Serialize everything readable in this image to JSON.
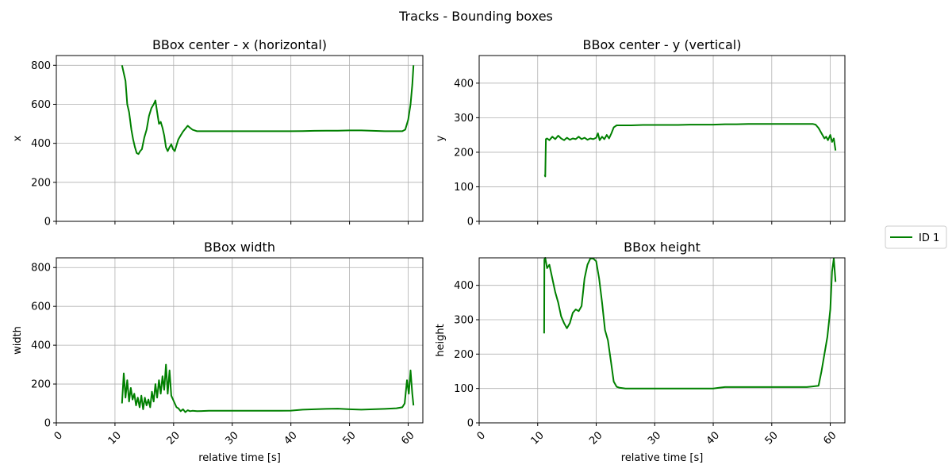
{
  "figure": {
    "title": "Tracks - Bounding boxes"
  },
  "legend": {
    "placement": "right",
    "entries": [
      {
        "label": "ID 1",
        "color": "#008000"
      }
    ]
  },
  "chart_data": [
    {
      "type": "line",
      "title": "BBox center - x (horizontal)",
      "xlabel": "",
      "ylabel": "x",
      "xlim": [
        0,
        62.5
      ],
      "ylim": [
        0,
        850
      ],
      "xticks": [
        0,
        10,
        20,
        30,
        40,
        50,
        60
      ],
      "yticks": [
        0,
        200,
        400,
        600,
        800
      ],
      "show_xticklabels": false,
      "grid": true,
      "series": [
        {
          "name": "ID 1",
          "color": "#008000",
          "x": [
            11.2,
            11.5,
            11.8,
            12.1,
            12.4,
            12.8,
            13.1,
            13.4,
            13.7,
            14.0,
            14.3,
            14.6,
            15.0,
            15.4,
            15.8,
            16.2,
            16.6,
            16.9,
            17.2,
            17.5,
            17.8,
            18.1,
            18.4,
            18.7,
            19.0,
            19.3,
            19.6,
            19.9,
            20.2,
            20.5,
            20.8,
            21.2,
            21.6,
            22.0,
            22.4,
            22.8,
            23.2,
            24,
            26,
            28,
            30,
            32,
            34,
            36,
            38,
            40,
            42,
            44,
            46,
            48,
            50,
            52,
            54,
            56,
            58,
            59.0,
            59.5,
            60.0,
            60.4,
            60.7,
            60.9
          ],
          "y": [
            800,
            760,
            720,
            600,
            560,
            470,
            420,
            380,
            350,
            345,
            360,
            370,
            430,
            470,
            540,
            580,
            600,
            620,
            560,
            500,
            510,
            480,
            440,
            380,
            360,
            380,
            395,
            370,
            360,
            390,
            420,
            440,
            460,
            475,
            490,
            480,
            470,
            462,
            462,
            462,
            462,
            462,
            462,
            462,
            462,
            462,
            463,
            464,
            465,
            465,
            466,
            466,
            464,
            462,
            462,
            462,
            470,
            520,
            600,
            700,
            800
          ]
        }
      ]
    },
    {
      "type": "line",
      "title": "BBox center - y (vertical)",
      "xlabel": "",
      "ylabel": "y",
      "xlim": [
        0,
        62.5
      ],
      "ylim": [
        0,
        480
      ],
      "xticks": [
        0,
        10,
        20,
        30,
        40,
        50,
        60
      ],
      "yticks": [
        0,
        100,
        200,
        300,
        400
      ],
      "show_xticklabels": false,
      "grid": true,
      "series": [
        {
          "name": "ID 1",
          "color": "#008000",
          "x": [
            11.2,
            11.3,
            11.4,
            11.6,
            12.0,
            12.5,
            13.0,
            13.5,
            14.0,
            14.5,
            15.0,
            15.5,
            16.0,
            16.5,
            17.0,
            17.5,
            18.0,
            18.5,
            19.0,
            19.5,
            20.0,
            20.3,
            20.6,
            21.0,
            21.4,
            21.8,
            22.2,
            22.6,
            23.0,
            23.5,
            24.5,
            26,
            28,
            30,
            32,
            34,
            36,
            38,
            40,
            42,
            44,
            46,
            48,
            50,
            52,
            54,
            56,
            57,
            57.5,
            58.0,
            58.5,
            59.0,
            59.3,
            59.6,
            60.0,
            60.3,
            60.6,
            60.9
          ],
          "y": [
            135,
            130,
            238,
            240,
            235,
            245,
            238,
            248,
            240,
            235,
            242,
            236,
            240,
            238,
            245,
            238,
            242,
            236,
            240,
            238,
            242,
            255,
            235,
            245,
            238,
            250,
            240,
            255,
            272,
            278,
            278,
            278,
            279,
            279,
            279,
            279,
            280,
            280,
            280,
            281,
            281,
            282,
            282,
            282,
            282,
            282,
            282,
            282,
            280,
            270,
            255,
            240,
            245,
            235,
            250,
            230,
            240,
            205
          ]
        }
      ]
    },
    {
      "type": "line",
      "title": "BBox width",
      "xlabel": "relative time [s]",
      "ylabel": "width",
      "xlim": [
        0,
        62.5
      ],
      "ylim": [
        0,
        850
      ],
      "xticks": [
        0,
        10,
        20,
        30,
        40,
        50,
        60
      ],
      "yticks": [
        0,
        200,
        400,
        600,
        800
      ],
      "show_xticklabels": true,
      "grid": true,
      "series": [
        {
          "name": "ID 1",
          "color": "#008000",
          "x": [
            11.2,
            11.5,
            11.8,
            12.1,
            12.4,
            12.7,
            13.0,
            13.3,
            13.6,
            13.9,
            14.2,
            14.5,
            14.8,
            15.1,
            15.4,
            15.7,
            16.0,
            16.3,
            16.6,
            16.9,
            17.2,
            17.5,
            17.8,
            18.1,
            18.4,
            18.7,
            19.0,
            19.3,
            19.6,
            19.9,
            20.2,
            20.5,
            20.8,
            21.2,
            21.6,
            22.0,
            22.4,
            22.8,
            23.2,
            24,
            26,
            28,
            30,
            32,
            34,
            36,
            38,
            40,
            42,
            44,
            46,
            48,
            50,
            52,
            54,
            56,
            58,
            59.0,
            59.4,
            59.8,
            60.1,
            60.4,
            60.7,
            60.9
          ],
          "y": [
            100,
            255,
            130,
            220,
            110,
            180,
            120,
            150,
            90,
            130,
            80,
            140,
            70,
            130,
            90,
            120,
            80,
            160,
            110,
            200,
            130,
            220,
            150,
            240,
            170,
            300,
            150,
            270,
            140,
            120,
            100,
            80,
            75,
            60,
            70,
            55,
            65,
            60,
            62,
            60,
            62,
            62,
            62,
            62,
            62,
            62,
            62,
            63,
            68,
            70,
            72,
            73,
            70,
            68,
            70,
            72,
            75,
            80,
            100,
            220,
            150,
            270,
            150,
            90
          ]
        }
      ]
    },
    {
      "type": "line",
      "title": "BBox height",
      "xlabel": "relative time [s]",
      "ylabel": "height",
      "xlim": [
        0,
        62.5
      ],
      "ylim": [
        0,
        480
      ],
      "xticks": [
        0,
        10,
        20,
        30,
        40,
        50,
        60
      ],
      "yticks": [
        0,
        100,
        200,
        300,
        400
      ],
      "show_xticklabels": true,
      "grid": true,
      "series": [
        {
          "name": "ID 1",
          "color": "#008000",
          "x": [
            11.1,
            11.15,
            11.3,
            11.6,
            12.0,
            12.5,
            13.0,
            13.5,
            14.0,
            14.5,
            15.0,
            15.5,
            16.0,
            16.5,
            17.0,
            17.5,
            18.0,
            18.5,
            19.0,
            19.5,
            20.0,
            20.5,
            21.0,
            21.5,
            22.0,
            22.5,
            23.0,
            23.5,
            24.0,
            25,
            26,
            28,
            30,
            32,
            34,
            36,
            38,
            40,
            41,
            42,
            44,
            46,
            48,
            50,
            52,
            54,
            56,
            57,
            58.0,
            58.5,
            59.0,
            59.5,
            60.0,
            60.3,
            60.6,
            60.9
          ],
          "y": [
            260,
            475,
            480,
            450,
            460,
            420,
            380,
            350,
            310,
            290,
            275,
            290,
            320,
            330,
            325,
            340,
            420,
            460,
            478,
            478,
            470,
            420,
            350,
            270,
            240,
            180,
            120,
            105,
            102,
            100,
            100,
            100,
            100,
            100,
            100,
            100,
            100,
            100,
            102,
            104,
            104,
            104,
            104,
            104,
            104,
            104,
            104,
            106,
            108,
            150,
            200,
            250,
            330,
            440,
            478,
            410
          ]
        }
      ]
    }
  ]
}
